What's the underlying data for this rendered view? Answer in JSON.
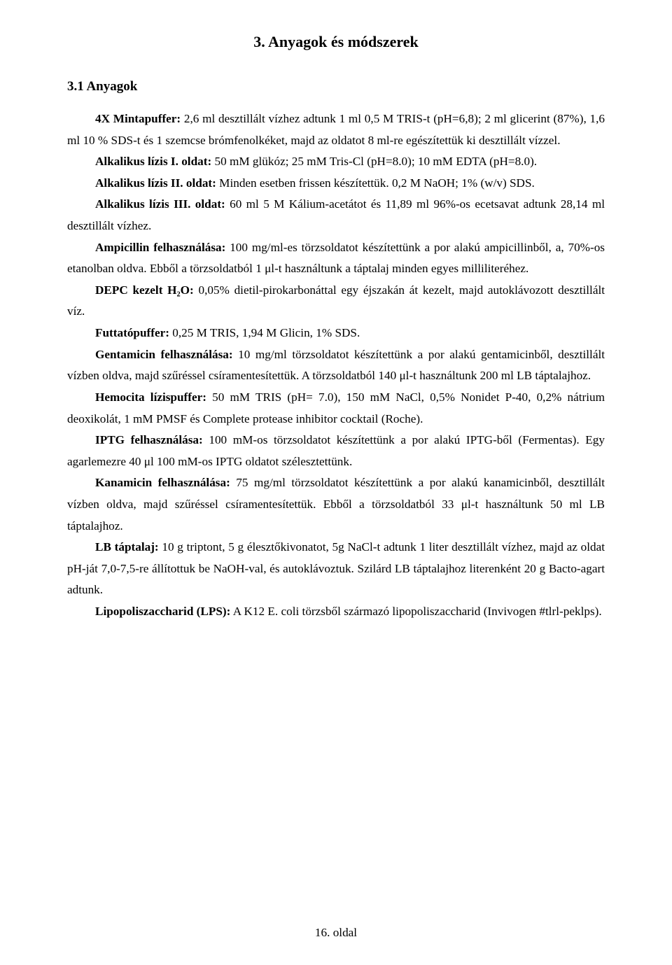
{
  "title": "3. Anyagok és módszerek",
  "subtitle": "3.1 Anyagok",
  "paragraphs": [
    {
      "bold": "4X Mintapuffer:",
      "text": " 2,6 ml desztillált vízhez adtunk 1 ml 0,5 M TRIS-t (pH=6,8); 2 ml glicerint (87%), 1,6 ml 10 % SDS-t és 1 szemcse brómfenolkéket, majd az oldatot 8 ml-re egészítettük ki desztillált vízzel."
    },
    {
      "bold": "Alkalikus lízis I. oldat:",
      "text": " 50 mM glükóz; 25 mM Tris-Cl (pH=8.0); 10 mM EDTA (pH=8.0)."
    },
    {
      "bold": "Alkalikus lízis II. oldat:",
      "text": " Minden esetben frissen készítettük. 0,2 M NaOH; 1% (w/v) SDS."
    },
    {
      "bold": "Alkalikus lízis III. oldat:",
      "text": " 60 ml 5 M Kálium-acetátot és 11,89 ml 96%-os ecetsavat adtunk 28,14 ml desztillált vízhez."
    },
    {
      "bold": "Ampicillin felhasználása:",
      "text": " 100 mg/ml-es törzsoldatot készítettünk a por alakú ampicillinből, a, 70%-os etanolban oldva. Ebből a törzsoldatból 1 μl-t használtunk a táptalaj minden egyes milliliteréhez."
    },
    {
      "bold": "DEPC kezelt H₂O:",
      "text": " 0,05% dietil-pirokarbonáttal egy éjszakán át kezelt, majd autoklávozott desztillált víz."
    },
    {
      "bold": "Futtatópuffer:",
      "text": " 0,25 M TRIS, 1,94 M Glicin, 1% SDS."
    },
    {
      "bold": "Gentamicin felhasználása:",
      "text": " 10 mg/ml törzsoldatot készítettünk a por alakú gentamicinből, desztillált vízben oldva, majd szűréssel csíramentesítettük. A törzsoldatból 140 μl-t használtunk 200 ml LB táptalajhoz."
    },
    {
      "bold": "Hemocita lízispuffer:",
      "text": " 50 mM TRIS (pH= 7.0), 150 mM NaCl, 0,5% Nonidet P-40, 0,2% nátrium deoxikolát, 1 mM PMSF és Complete protease inhibitor cocktail (Roche)."
    },
    {
      "bold": "IPTG felhasználása:",
      "text": " 100 mM-os törzsoldatot készítettünk a por alakú IPTG-ből (Fermentas). Egy agarlemezre 40 μl 100 mM-os IPTG oldatot szélesztettünk."
    },
    {
      "bold": "Kanamicin felhasználása:",
      "text": " 75 mg/ml törzsoldatot készítettünk a por alakú kanamicinből, desztillált vízben oldva, majd szűréssel csíramentesítettük. Ebből a törzsoldatból 33 μl-t használtunk 50 ml LB táptalajhoz."
    },
    {
      "bold": "LB táptalaj:",
      "text": " 10 g triptont, 5 g élesztőkivonatot, 5g NaCl-t adtunk 1 liter desztillált vízhez, majd az oldat pH-ját 7,0-7,5-re állítottuk be NaOH-val, és autoklávoztuk. Szilárd LB táptalajhoz literenként 20 g Bacto-agart adtunk."
    },
    {
      "bold": "Lipopoliszaccharid (LPS):",
      "text": " A K12 E. coli törzsből származó lipopoliszaccharid (Invivogen #tlrl-peklps)."
    }
  ],
  "footer": "16. oldal"
}
